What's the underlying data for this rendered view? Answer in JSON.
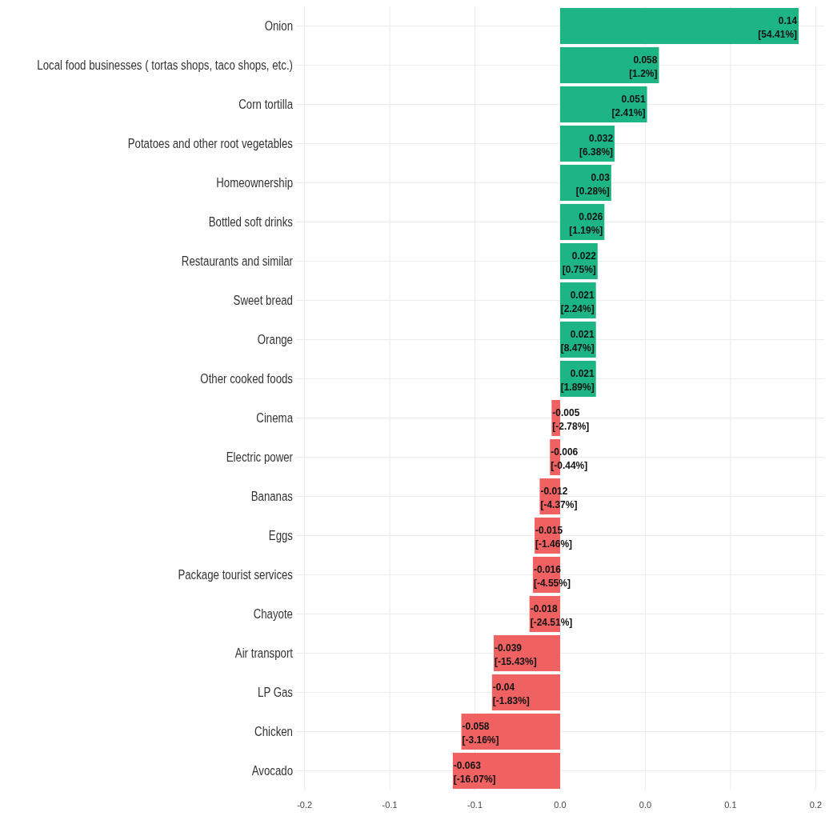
{
  "chart_data": {
    "type": "bar",
    "orientation": "horizontal",
    "categories": [
      "Onion",
      "Local food businesses ( tortas shops, taco shops, etc.)",
      "Corn tortilla",
      "Potatoes and other root vegetables",
      "Homeownership",
      "Bottled soft drinks",
      "Restaurants and similar",
      "Sweet bread",
      "Orange",
      "Other cooked foods",
      "Cinema",
      "Electric power",
      "Bananas",
      "Eggs",
      "Package tourist services",
      "Chayote",
      "Air transport",
      "LP Gas",
      "Chicken",
      "Avocado"
    ],
    "values": [
      0.14,
      0.058,
      0.051,
      0.032,
      0.03,
      0.026,
      0.022,
      0.021,
      0.021,
      0.021,
      -0.005,
      -0.006,
      -0.012,
      -0.015,
      -0.016,
      -0.018,
      -0.039,
      -0.04,
      -0.058,
      -0.063
    ],
    "colors": [
      "#1db584",
      "#1db584",
      "#1db584",
      "#1db584",
      "#1db584",
      "#1db584",
      "#1db584",
      "#1db584",
      "#1db584",
      "#1db584",
      "#f06262",
      "#f06262",
      "#f06262",
      "#f06262",
      "#f06262",
      "#f06262",
      "#f06262",
      "#f06262",
      "#f06262",
      "#f06262"
    ],
    "value_labels": [
      "0.14\n[54.41%]",
      "0.058\n[1.2%]",
      "0.051\n[2.41%]",
      "0.032\n[6.38%]",
      "0.03\n[0.28%]",
      "0.026\n[1.19%]",
      "0.022\n[0.75%]",
      "0.021\n[2.24%]",
      "0.021\n[8.47%]",
      "0.021\n[1.89%]",
      "-0.005\n[-2.78%]",
      "-0.006\n[-0.44%]",
      "-0.012\n[-4.37%]",
      "-0.015\n[-1.46%]",
      "-0.016\n[-4.55%]",
      "-0.018\n[-24.51%]",
      "-0.039\n[-15.43%]",
      "-0.04\n[-1.83%]",
      "-0.058\n[-3.16%]",
      "-0.063\n[-16.07%]"
    ],
    "xlim": [
      -0.155,
      0.155
    ],
    "xticks": [
      {
        "value": -0.15,
        "label": "-0.2"
      },
      {
        "value": -0.1,
        "label": "-0.1"
      },
      {
        "value": -0.05,
        "label": "-0.1"
      },
      {
        "value": 0,
        "label": "0.0"
      },
      {
        "value": 0.05,
        "label": "0.0"
      },
      {
        "value": 0.1,
        "label": "0.1"
      },
      {
        "value": 0.15,
        "label": "0.2"
      }
    ],
    "grid": true
  }
}
